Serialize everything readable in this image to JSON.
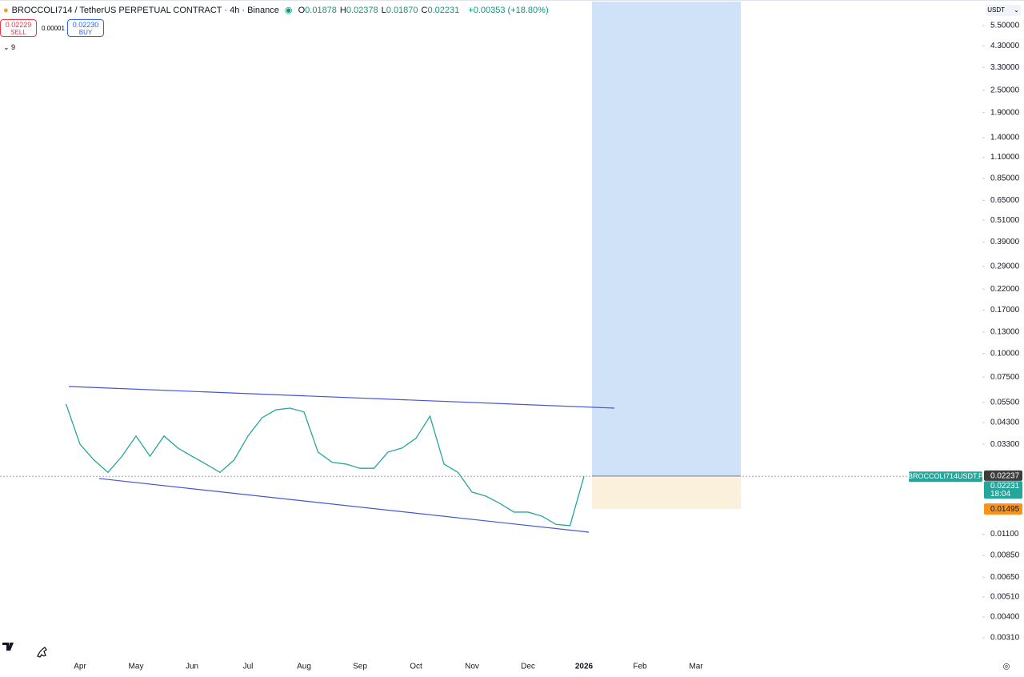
{
  "header": {
    "symbol": "BROCCOLI714 / TetherUS PERPETUAL CONTRACT · 4h · Binance",
    "ohlc": [
      {
        "label": "O",
        "value": "0.01878"
      },
      {
        "label": "H",
        "value": "0.02378"
      },
      {
        "label": "L",
        "value": "0.01870"
      },
      {
        "label": "C",
        "value": "0.02231"
      }
    ],
    "change": "+0.00353 (+18.80%)"
  },
  "trade": {
    "sell_price": "0.02229",
    "sell_label": "SELL",
    "spread": "0.00001",
    "buy_price": "0.02230",
    "buy_label": "BUY"
  },
  "indicators_count": "9",
  "currency": "USDT",
  "chart_data": {
    "type": "line",
    "log_scale": true,
    "grid": false,
    "ylim": [
      0.0026,
      7.52
    ],
    "yticks": [
      {
        "value": 5.5,
        "label": "5.50000"
      },
      {
        "value": 4.3,
        "label": "4.30000"
      },
      {
        "value": 3.3,
        "label": "3.30000"
      },
      {
        "value": 2.5,
        "label": "2.50000"
      },
      {
        "value": 1.9,
        "label": "1.90000"
      },
      {
        "value": 1.4,
        "label": "1.40000"
      },
      {
        "value": 1.1,
        "label": "1.10000"
      },
      {
        "value": 0.85,
        "label": "0.85000"
      },
      {
        "value": 0.65,
        "label": "0.65000"
      },
      {
        "value": 0.51,
        "label": "0.51000"
      },
      {
        "value": 0.39,
        "label": "0.39000"
      },
      {
        "value": 0.29,
        "label": "0.29000"
      },
      {
        "value": 0.22,
        "label": "0.22000"
      },
      {
        "value": 0.17,
        "label": "0.17000"
      },
      {
        "value": 0.13,
        "label": "0.13000"
      },
      {
        "value": 0.1,
        "label": "0.10000"
      },
      {
        "value": 0.075,
        "label": "0.07500"
      },
      {
        "value": 0.055,
        "label": "0.05500"
      },
      {
        "value": 0.043,
        "label": "0.04300"
      },
      {
        "value": 0.033,
        "label": "0.03300"
      },
      {
        "value": 0.011,
        "label": "0.01100"
      },
      {
        "value": 0.0085,
        "label": "0.00850"
      },
      {
        "value": 0.0065,
        "label": "0.00650"
      },
      {
        "value": 0.0051,
        "label": "0.00510"
      },
      {
        "value": 0.004,
        "label": "0.00400"
      },
      {
        "value": 0.0031,
        "label": "0.00310"
      }
    ],
    "categories": [
      null,
      null,
      null,
      null,
      "Apr",
      null,
      null,
      null,
      "May",
      null,
      null,
      null,
      "Jun",
      null,
      null,
      null,
      "Jul",
      null,
      null,
      null,
      "Aug",
      null,
      null,
      null,
      "Sep",
      null,
      null,
      null,
      "Oct",
      null,
      null,
      null,
      "Nov",
      null,
      null,
      null,
      "Dec",
      null,
      null,
      null,
      "2026",
      null,
      null,
      null,
      "Feb",
      null,
      null,
      null,
      "Mar"
    ],
    "series": [
      {
        "name": "BROCCOLI714USDT.P",
        "color": "#26a69a",
        "values": [
          null,
          null,
          null,
          0.054,
          0.033,
          0.0272,
          0.0234,
          0.0285,
          0.0365,
          0.0285,
          0.0365,
          0.0315,
          0.0285,
          0.0259,
          0.0234,
          0.0272,
          0.0365,
          0.0456,
          0.0503,
          0.0513,
          0.049,
          0.03,
          0.0265,
          0.0259,
          0.0246,
          0.0246,
          0.03,
          0.0315,
          0.0355,
          0.0465,
          0.0259,
          0.0234,
          0.0184,
          0.0175,
          0.016,
          0.0144,
          0.0144,
          0.0137,
          0.0124,
          0.0122,
          0.02231,
          null,
          null,
          null,
          null,
          null,
          null,
          null,
          null
        ]
      }
    ],
    "last_price": 0.02231,
    "countdown": "18:04",
    "position": {
      "entry": 0.02237,
      "stop": 0.01495
    }
  }
}
